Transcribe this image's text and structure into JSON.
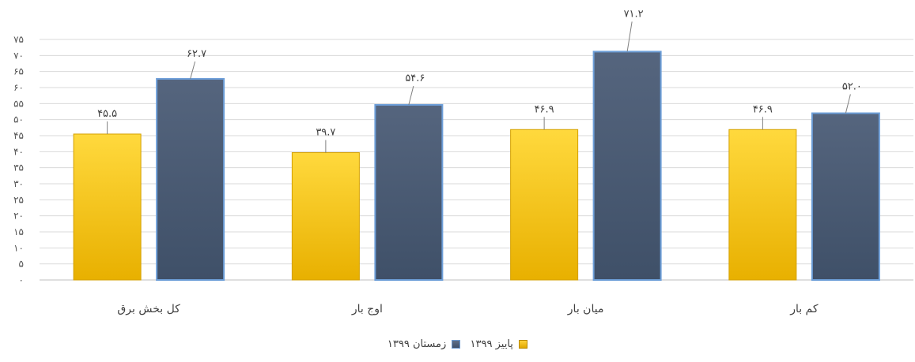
{
  "chart_data": {
    "type": "bar",
    "title": "",
    "categories": [
      "کل بخش برق",
      "اوج بار",
      "میان بار",
      "کم بار"
    ],
    "series": [
      {
        "name": "پاییز ۱۳۹۹",
        "values": [
          45.5,
          39.7,
          46.9,
          46.9
        ],
        "labels": [
          "۴۵.۵",
          "۳۹.۷",
          "۴۶.۹",
          "۴۶.۹"
        ],
        "color": "#ffc800"
      },
      {
        "name": "زمستان ۱۳۹۹",
        "values": [
          62.7,
          54.6,
          71.2,
          52.0
        ],
        "labels": [
          "۶۲.۷",
          "۵۴.۶",
          "۷۱.۲",
          "۵۲.۰"
        ],
        "color": "#4a5a73"
      }
    ],
    "ylim": [
      0,
      75
    ],
    "yticks": [
      0,
      5,
      10,
      15,
      20,
      25,
      30,
      35,
      40,
      45,
      50,
      55,
      60,
      65,
      70,
      75
    ],
    "ytick_labels": [
      "۰",
      "۵",
      "۱۰",
      "۱۵",
      "۲۰",
      "۲۵",
      "۳۰",
      "۳۵",
      "۴۰",
      "۴۵",
      "۵۰",
      "۵۵",
      "۶۰",
      "۶۵",
      "۷۰",
      "۷۵"
    ],
    "grid": true,
    "legend_position": "bottom"
  }
}
